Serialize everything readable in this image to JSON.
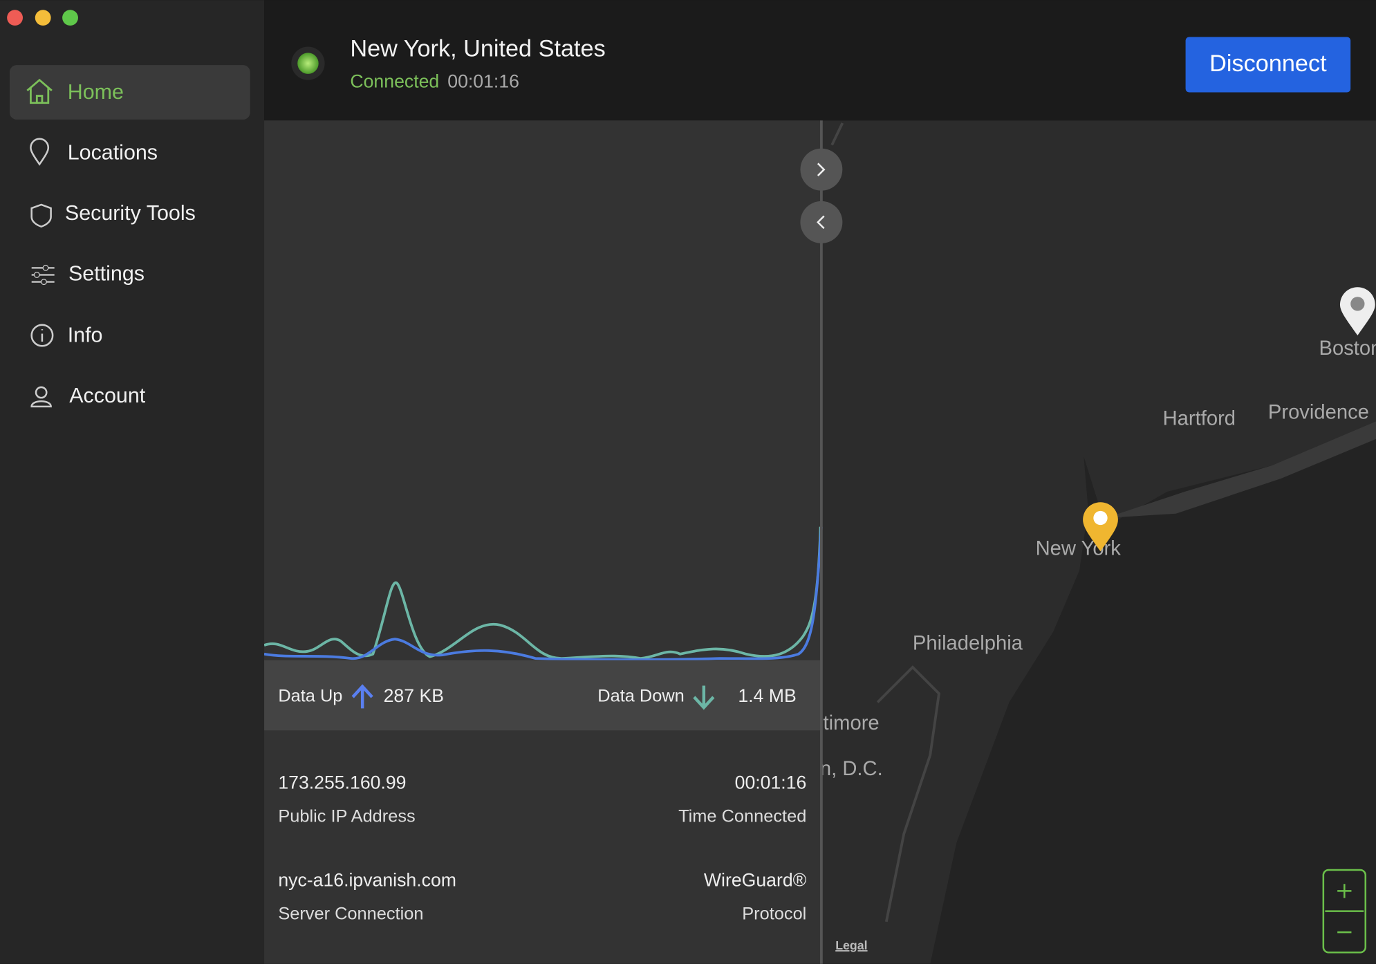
{
  "sidebar": {
    "nav": [
      "Home",
      "Locations",
      "Security Tools",
      "Settings",
      "Info",
      "Account"
    ]
  },
  "header": {
    "location": "New York, United States",
    "status": "Connected",
    "elapsed": "00:01:16",
    "button": "Disconnect"
  },
  "stats": {
    "up_label": "Data Up",
    "up_value": "287 KB",
    "down_label": "Data Down",
    "down_value": "1.4 MB"
  },
  "details": [
    {
      "value": "173.255.160.99",
      "label": "Public IP Address"
    },
    {
      "value": "00:01:16",
      "label": "Time Connected"
    },
    {
      "value": "nyc-a16.ipvanish.com",
      "label": "Server Connection"
    },
    {
      "value": "WireGuard®",
      "label": "Protocol"
    }
  ],
  "map": {
    "cities": [
      "Boston",
      "Hartford",
      "Providence",
      "New York",
      "Philadelphia",
      "Baltimore",
      "Washington, D.C."
    ],
    "legal": "Legal"
  }
}
